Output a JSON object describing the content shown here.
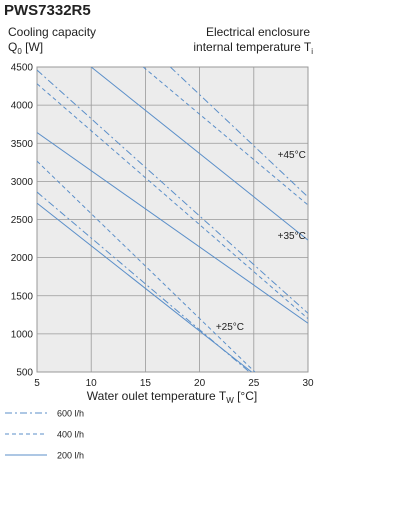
{
  "chart_data": {
    "type": "line",
    "title": "PWS7332R5",
    "ylabel": {
      "line1": "Cooling capacity",
      "text": "Q",
      "sub": "0",
      "after": " [W]"
    },
    "right_label": {
      "line1": "Electrical enclosure",
      "text": "internal temperature T",
      "sub": "i"
    },
    "xlabel": {
      "text": "Water oulet temperature T",
      "sub": "W",
      "after": " [°C]"
    },
    "xlim": [
      5,
      30
    ],
    "xticks": [
      5,
      10,
      15,
      20,
      25,
      30
    ],
    "ylim": [
      500,
      4500
    ],
    "yticks": [
      500,
      1000,
      1500,
      2000,
      2500,
      3000,
      3500,
      4000,
      4500
    ],
    "grid": true,
    "color": "#5b8fc9",
    "legend": [
      {
        "name": "600 l/h",
        "style": "dash-dot"
      },
      {
        "name": "400 l/h",
        "style": "dashed"
      },
      {
        "name": "200 l/h",
        "style": "solid"
      }
    ],
    "groups": [
      {
        "label": "+45°C",
        "label_x": 28.5,
        "label_y": 3350,
        "lines": [
          {
            "style": "dash-dot",
            "x": [
              17.3,
              30
            ],
            "values": [
              4500,
              2795
            ]
          },
          {
            "style": "dashed",
            "x": [
              14.8,
              30
            ],
            "values": [
              4500,
              2690
            ]
          },
          {
            "style": "solid",
            "x": [
              10,
              30
            ],
            "values": [
              4500,
              2230
            ]
          }
        ]
      },
      {
        "label": "+35°C",
        "label_x": 28.5,
        "label_y": 2290,
        "lines": [
          {
            "style": "dash-dot",
            "x": [
              5,
              30
            ],
            "values": [
              4460,
              1270
            ]
          },
          {
            "style": "dashed",
            "x": [
              5,
              30
            ],
            "values": [
              4280,
              1200
            ]
          },
          {
            "style": "solid",
            "x": [
              5,
              30
            ],
            "values": [
              3640,
              1140
            ]
          }
        ]
      },
      {
        "label": "+25°C",
        "label_x": 22.8,
        "label_y": 1100,
        "lines": [
          {
            "style": "dash-dot",
            "x": [
              5,
              24.6
            ],
            "values": [
              2860,
              500
            ]
          },
          {
            "style": "dashed",
            "x": [
              5,
              25.1
            ],
            "values": [
              3265,
              500
            ]
          },
          {
            "style": "solid",
            "x": [
              5,
              24.8
            ],
            "values": [
              2715,
              500
            ]
          }
        ]
      }
    ]
  }
}
